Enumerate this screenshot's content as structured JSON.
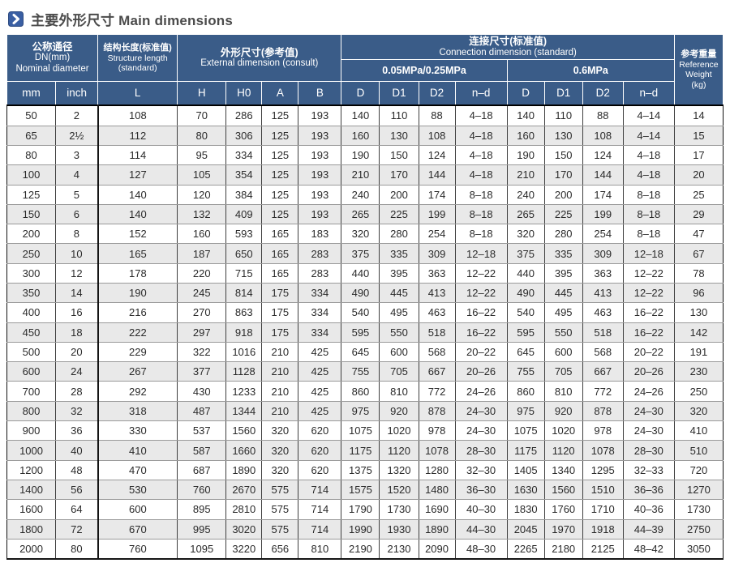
{
  "title": {
    "text": "主要外形尺寸 Main dimensions"
  },
  "colors": {
    "header_bg": "#3a5c88",
    "stripe": "#e9e9e9",
    "accent_icon": "#3a5fa3"
  },
  "table": {
    "header": {
      "nominal": {
        "zh": "公称通径",
        "mid": "DN(mm)",
        "en": "Nominal diameter"
      },
      "structure": {
        "zh": "结构长度(标准值)",
        "en1": "Structure length",
        "en2": "(standard)"
      },
      "external": {
        "zh": "外形尺寸(参考值)",
        "en": "External dimension (consult)"
      },
      "connection": {
        "zh": "连接尺寸(标准值)",
        "en": "Connection dimension (standard)"
      },
      "pressure_low": "0.05MPa/0.25MPa",
      "pressure_high": "0.6MPa",
      "weight": {
        "zh": "参考重量",
        "en1": "Reference",
        "en2": "Weight",
        "en3": "(kg)"
      },
      "units": [
        "mm",
        "inch",
        "L",
        "H",
        "H0",
        "A",
        "B",
        "D",
        "D1",
        "D2",
        "n–d",
        "D",
        "D1",
        "D2",
        "n–d"
      ]
    },
    "rows": [
      [
        "50",
        "2",
        "108",
        "70",
        "286",
        "125",
        "193",
        "140",
        "110",
        "88",
        "4–18",
        "140",
        "110",
        "88",
        "4–14",
        "14"
      ],
      [
        "65",
        "2½",
        "112",
        "80",
        "306",
        "125",
        "193",
        "160",
        "130",
        "108",
        "4–18",
        "160",
        "130",
        "108",
        "4–14",
        "15"
      ],
      [
        "80",
        "3",
        "114",
        "95",
        "334",
        "125",
        "193",
        "190",
        "150",
        "124",
        "4–18",
        "190",
        "150",
        "124",
        "4–18",
        "17"
      ],
      [
        "100",
        "4",
        "127",
        "105",
        "354",
        "125",
        "193",
        "210",
        "170",
        "144",
        "4–18",
        "210",
        "170",
        "144",
        "4–18",
        "20"
      ],
      [
        "125",
        "5",
        "140",
        "120",
        "384",
        "125",
        "193",
        "240",
        "200",
        "174",
        "8–18",
        "240",
        "200",
        "174",
        "8–18",
        "25"
      ],
      [
        "150",
        "6",
        "140",
        "132",
        "409",
        "125",
        "193",
        "265",
        "225",
        "199",
        "8–18",
        "265",
        "225",
        "199",
        "8–18",
        "29"
      ],
      [
        "200",
        "8",
        "152",
        "160",
        "593",
        "165",
        "183",
        "320",
        "280",
        "254",
        "8–18",
        "320",
        "280",
        "254",
        "8–18",
        "47"
      ],
      [
        "250",
        "10",
        "165",
        "187",
        "650",
        "165",
        "283",
        "375",
        "335",
        "309",
        "12–18",
        "375",
        "335",
        "309",
        "12–18",
        "67"
      ],
      [
        "300",
        "12",
        "178",
        "220",
        "715",
        "165",
        "283",
        "440",
        "395",
        "363",
        "12–22",
        "440",
        "395",
        "363",
        "12–22",
        "78"
      ],
      [
        "350",
        "14",
        "190",
        "245",
        "814",
        "175",
        "334",
        "490",
        "445",
        "413",
        "12–22",
        "490",
        "445",
        "413",
        "12–22",
        "96"
      ],
      [
        "400",
        "16",
        "216",
        "270",
        "863",
        "175",
        "334",
        "540",
        "495",
        "463",
        "16–22",
        "540",
        "495",
        "463",
        "16–22",
        "130"
      ],
      [
        "450",
        "18",
        "222",
        "297",
        "918",
        "175",
        "334",
        "595",
        "550",
        "518",
        "16–22",
        "595",
        "550",
        "518",
        "16–22",
        "142"
      ],
      [
        "500",
        "20",
        "229",
        "322",
        "1016",
        "210",
        "425",
        "645",
        "600",
        "568",
        "20–22",
        "645",
        "600",
        "568",
        "20–22",
        "191"
      ],
      [
        "600",
        "24",
        "267",
        "377",
        "1128",
        "210",
        "425",
        "755",
        "705",
        "667",
        "20–26",
        "755",
        "705",
        "667",
        "20–26",
        "230"
      ],
      [
        "700",
        "28",
        "292",
        "430",
        "1233",
        "210",
        "425",
        "860",
        "810",
        "772",
        "24–26",
        "860",
        "810",
        "772",
        "24–26",
        "250"
      ],
      [
        "800",
        "32",
        "318",
        "487",
        "1344",
        "210",
        "425",
        "975",
        "920",
        "878",
        "24–30",
        "975",
        "920",
        "878",
        "24–30",
        "320"
      ],
      [
        "900",
        "36",
        "330",
        "537",
        "1560",
        "320",
        "620",
        "1075",
        "1020",
        "978",
        "24–30",
        "1075",
        "1020",
        "978",
        "24–30",
        "410"
      ],
      [
        "1000",
        "40",
        "410",
        "587",
        "1660",
        "320",
        "620",
        "1175",
        "1120",
        "1078",
        "28–30",
        "1175",
        "1120",
        "1078",
        "28–30",
        "510"
      ],
      [
        "1200",
        "48",
        "470",
        "687",
        "1890",
        "320",
        "620",
        "1375",
        "1320",
        "1280",
        "32–30",
        "1405",
        "1340",
        "1295",
        "32–33",
        "720"
      ],
      [
        "1400",
        "56",
        "530",
        "760",
        "2670",
        "575",
        "714",
        "1575",
        "1520",
        "1480",
        "36–30",
        "1630",
        "1560",
        "1510",
        "36–36",
        "1270"
      ],
      [
        "1600",
        "64",
        "600",
        "895",
        "2810",
        "575",
        "714",
        "1790",
        "1730",
        "1690",
        "40–30",
        "1830",
        "1760",
        "1710",
        "40–36",
        "1730"
      ],
      [
        "1800",
        "72",
        "670",
        "995",
        "3020",
        "575",
        "714",
        "1990",
        "1930",
        "1890",
        "44–30",
        "2045",
        "1970",
        "1918",
        "44–39",
        "2750"
      ],
      [
        "2000",
        "80",
        "760",
        "1095",
        "3220",
        "656",
        "810",
        "2190",
        "2130",
        "2090",
        "48–30",
        "2265",
        "2180",
        "2125",
        "48–42",
        "3050"
      ]
    ]
  }
}
